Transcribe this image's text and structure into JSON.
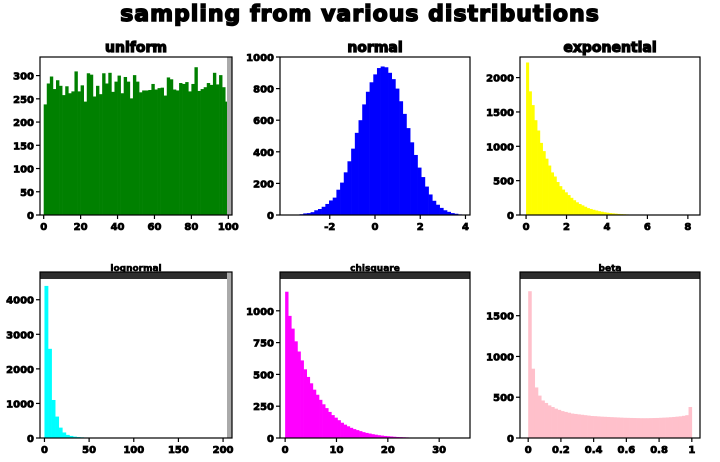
{
  "chart_data": {
    "type": "grid",
    "title": "sampling from various distributions",
    "panels": [
      {
        "type": "bar",
        "title": "uniform",
        "color": "#008000",
        "xlim": [
          -2,
          102
        ],
        "ylim": [
          0,
          340
        ],
        "xticks": [
          0,
          20,
          40,
          60,
          80,
          100
        ],
        "yticks": [
          0,
          50,
          100,
          150,
          200,
          250,
          300
        ],
        "values": [
          238,
          283,
          298,
          271,
          290,
          278,
          258,
          277,
          262,
          266,
          309,
          266,
          279,
          244,
          305,
          302,
          255,
          278,
          260,
          305,
          283,
          306,
          265,
          287,
          300,
          262,
          297,
          287,
          251,
          301,
          287,
          264,
          268,
          268,
          269,
          282,
          270,
          273,
          274,
          257,
          296,
          292,
          270,
          268,
          284,
          282,
          286,
          266,
          282,
          318,
          267,
          271,
          275,
          284,
          280,
          306,
          281,
          301,
          275,
          244
        ],
        "bin_start": 0,
        "bin_end": 100
      },
      {
        "type": "bar",
        "title": "normal",
        "color": "#0000ff",
        "xlim": [
          -4.2,
          4.2
        ],
        "ylim": [
          0,
          1000
        ],
        "xticks": [
          -2,
          0,
          2,
          4
        ],
        "yticks": [
          0,
          200,
          400,
          600,
          800,
          1000
        ],
        "values": [
          2,
          5,
          10,
          12,
          18,
          30,
          38,
          52,
          70,
          92,
          110,
          160,
          205,
          270,
          340,
          420,
          520,
          600,
          700,
          780,
          840,
          890,
          930,
          940,
          935,
          900,
          860,
          800,
          720,
          640,
          550,
          460,
          380,
          300,
          240,
          180,
          130,
          90,
          65,
          45,
          30,
          20,
          12,
          8,
          4,
          2
        ],
        "bin_start": -3.5,
        "bin_end": 4.0
      },
      {
        "type": "bar",
        "title": "exponential",
        "color": "#ffff00",
        "xlim": [
          -0.3,
          8.6
        ],
        "ylim": [
          0,
          2300
        ],
        "xticks": [
          0,
          2,
          4,
          6,
          8
        ],
        "yticks": [
          0,
          500,
          1000,
          1500,
          2000
        ],
        "values": [
          2220,
          1800,
          1600,
          1380,
          1230,
          1050,
          930,
          820,
          720,
          620,
          560,
          480,
          420,
          370,
          330,
          290,
          250,
          215,
          185,
          160,
          140,
          120,
          100,
          88,
          76,
          66,
          56,
          48,
          40,
          34,
          28,
          24,
          20,
          16,
          13,
          11,
          9,
          7,
          6,
          5,
          4,
          3,
          3,
          2,
          2,
          1,
          1,
          1,
          1,
          1,
          0,
          0,
          0,
          0,
          0,
          0,
          0,
          0,
          0,
          0
        ],
        "bin_start": 0,
        "bin_end": 8.2
      },
      {
        "type": "bar",
        "title": "lognormal",
        "color": "#00ffff",
        "xlim": [
          -5,
          210
        ],
        "ylim": [
          0,
          4600
        ],
        "xticks": [
          0,
          50,
          100,
          150,
          200
        ],
        "yticks": [
          0,
          1000,
          2000,
          3000,
          4000
        ],
        "values": [
          4400,
          2580,
          1100,
          620,
          300,
          160,
          90,
          60,
          40,
          28,
          20,
          15,
          11,
          8,
          6,
          4,
          3,
          2,
          2,
          1,
          1,
          1,
          1,
          1,
          0,
          0,
          0,
          0,
          0,
          0,
          0,
          0,
          0,
          0,
          0,
          0,
          0,
          0,
          0,
          0,
          0,
          0,
          0,
          0,
          0,
          0,
          0,
          0,
          0,
          0
        ],
        "bin_start": 0,
        "bin_end": 200
      },
      {
        "type": "bar",
        "title": "chisquare",
        "color": "#ff00ff",
        "xlim": [
          -1,
          36
        ],
        "ylim": [
          0,
          1250
        ],
        "xticks": [
          0,
          10,
          20,
          30
        ],
        "yticks": [
          0,
          250,
          500,
          750,
          1000
        ],
        "values": [
          1150,
          960,
          860,
          760,
          680,
          610,
          540,
          480,
          430,
          380,
          340,
          300,
          265,
          235,
          205,
          180,
          160,
          140,
          120,
          105,
          92,
          80,
          70,
          62,
          54,
          46,
          40,
          35,
          30,
          26,
          22,
          19,
          16,
          14,
          12,
          10,
          8,
          7,
          6,
          5,
          4,
          3,
          3,
          2,
          2,
          1,
          1,
          1,
          0,
          0
        ],
        "bin_start": 0,
        "bin_end": 30
      },
      {
        "type": "bar",
        "title": "beta",
        "color": "#ffc0cb",
        "xlim": [
          -0.05,
          1.05
        ],
        "ylim": [
          0,
          1950
        ],
        "xticks": [
          0.0,
          0.2,
          0.4,
          0.6,
          0.8,
          1.0
        ],
        "yticks": [
          0,
          500,
          1000,
          1500
        ],
        "values": [
          1800,
          850,
          620,
          520,
          460,
          430,
          400,
          380,
          360,
          345,
          330,
          320,
          310,
          300,
          295,
          290,
          285,
          280,
          275,
          270,
          268,
          265,
          262,
          260,
          258,
          256,
          254,
          252,
          250,
          248,
          247,
          246,
          245,
          244,
          243,
          243,
          243,
          244,
          245,
          246,
          248,
          250,
          252,
          255,
          258,
          262,
          266,
          272,
          280,
          380
        ],
        "bin_start": 0,
        "bin_end": 1
      }
    ]
  }
}
